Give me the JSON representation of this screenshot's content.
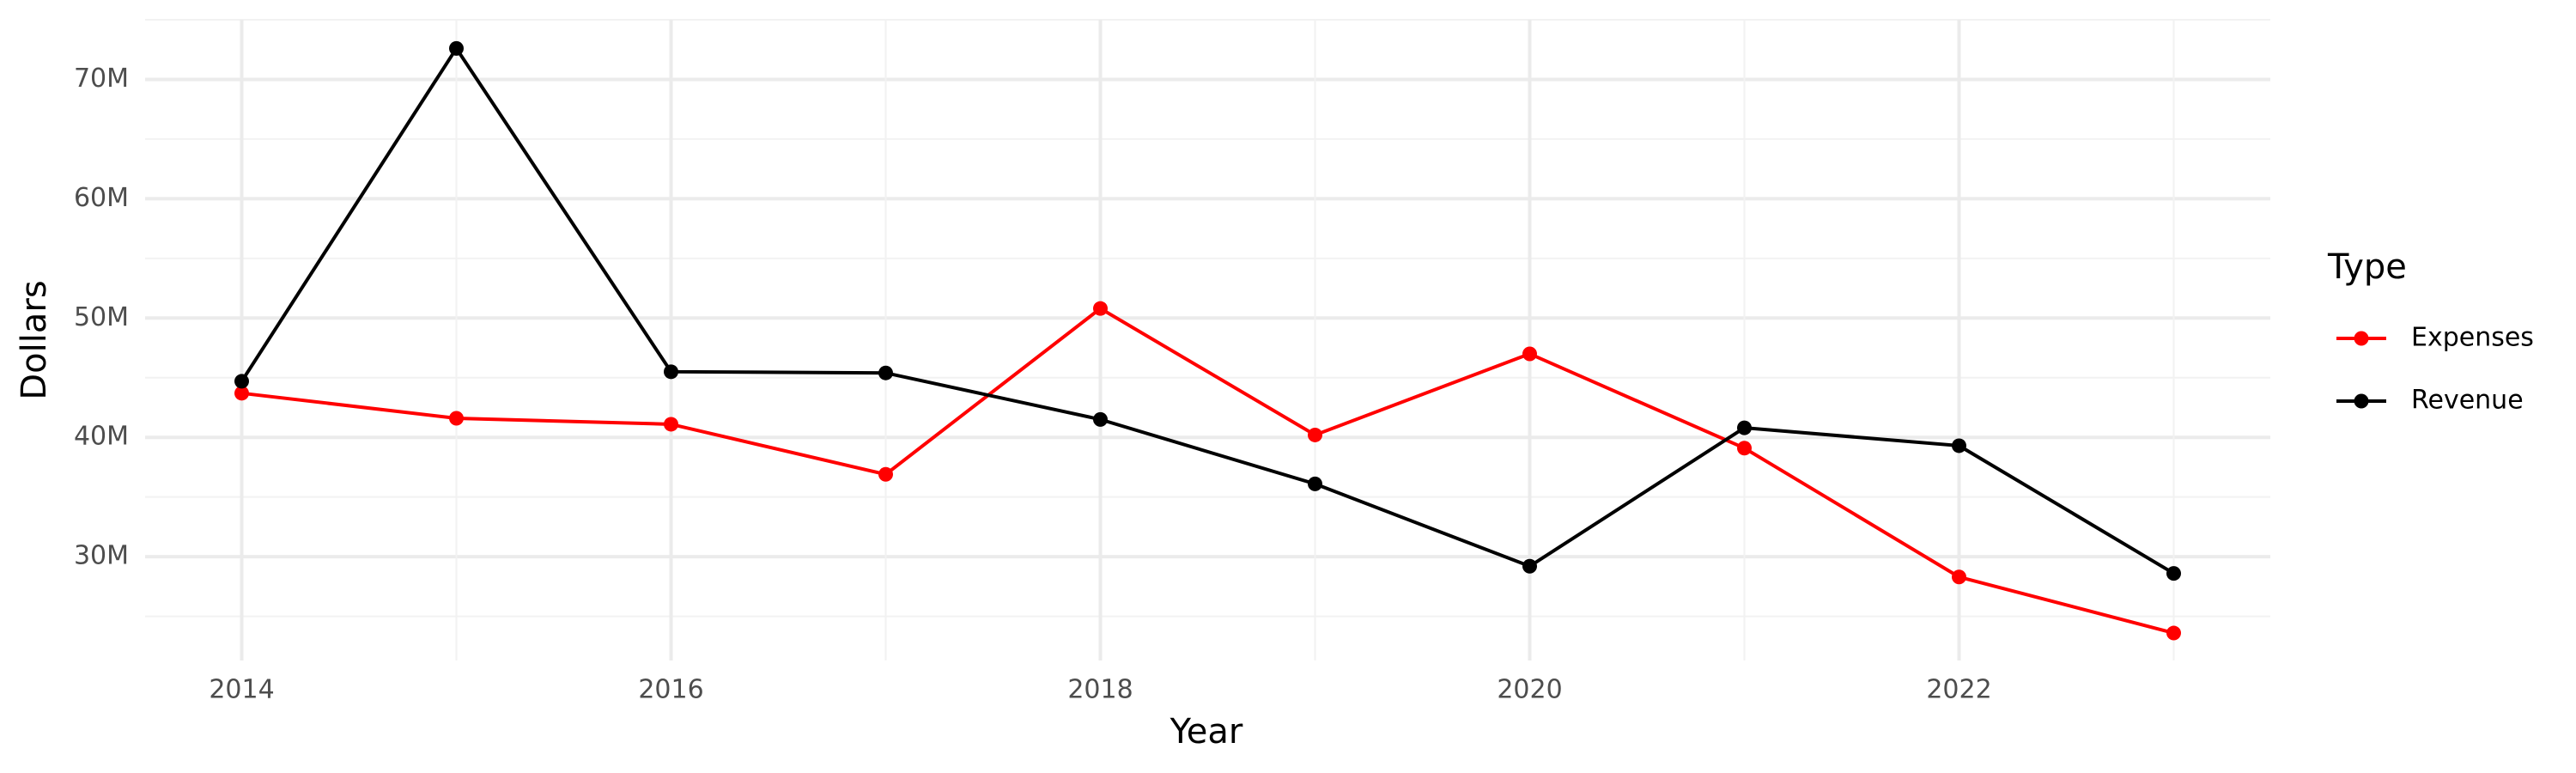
{
  "chart_data": {
    "type": "line",
    "x_label": "Year",
    "y_label": "Dollars",
    "x": [
      2014,
      2015,
      2016,
      2017,
      2018,
      2019,
      2020,
      2021,
      2022,
      2023
    ],
    "series": [
      {
        "name": "Expenses",
        "color": "#ff0000",
        "values": [
          43700000,
          41600000,
          41100000,
          36900000,
          50800000,
          40200000,
          47000000,
          39100000,
          28300000,
          23600000
        ]
      },
      {
        "name": "Revenue",
        "color": "#000000",
        "values": [
          44700000,
          72600000,
          45500000,
          45400000,
          41500000,
          36100000,
          29200000,
          40800000,
          39300000,
          28600000
        ]
      }
    ],
    "legend_title": "Type",
    "xlim": [
      2013.55,
      2023.45
    ],
    "xticks": [
      2014,
      2016,
      2018,
      2020,
      2022
    ],
    "ylim": [
      21300000,
      75000000
    ],
    "yticks": [
      {
        "value": 30000000,
        "label": "30M"
      },
      {
        "value": 40000000,
        "label": "40M"
      },
      {
        "value": 50000000,
        "label": "50M"
      },
      {
        "value": 60000000,
        "label": "60M"
      },
      {
        "value": 70000000,
        "label": "70M"
      }
    ],
    "grid": true,
    "legend_position": "right"
  }
}
